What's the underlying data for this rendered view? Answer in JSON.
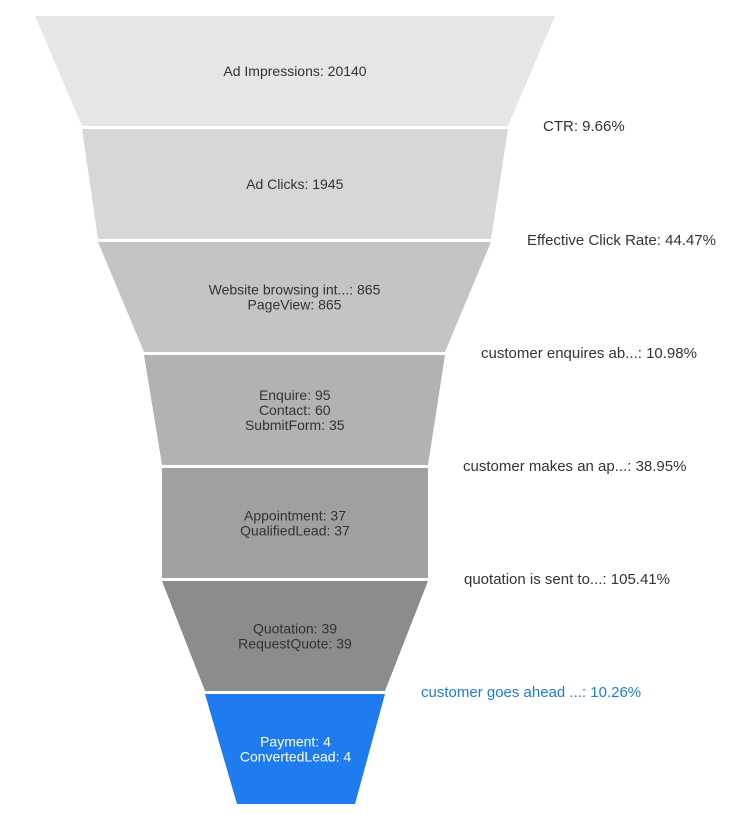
{
  "chart_data": {
    "type": "funnel",
    "stages": [
      {
        "name": "Ad Impressions",
        "value": 20140,
        "lines": [
          "Ad Impressions: 20140"
        ],
        "color": "#e6e6e6"
      },
      {
        "name": "Ad Clicks",
        "value": 1945,
        "lines": [
          "Ad Clicks: 1945"
        ],
        "color": "#d7d7d7"
      },
      {
        "name": "Website browsing int...",
        "value": 865,
        "lines": [
          "Website browsing int...: 865",
          "PageView: 865"
        ],
        "color": "#c4c4c4"
      },
      {
        "name": "Enquire / Contact / SubmitForm",
        "value": 95,
        "lines": [
          "Enquire: 95",
          "Contact: 60",
          "SubmitForm: 35"
        ],
        "color": "#b2b2b2"
      },
      {
        "name": "Appointment / QualifiedLead",
        "value": 37,
        "lines": [
          "Appointment: 37",
          "QualifiedLead: 37"
        ],
        "color": "#a0a0a0"
      },
      {
        "name": "Quotation / RequestQuote",
        "value": 39,
        "lines": [
          "Quotation: 39",
          "RequestQuote: 39"
        ],
        "color": "#8c8c8c"
      },
      {
        "name": "Payment / ConvertedLead",
        "value": 4,
        "lines": [
          "Payment: 4",
          "ConvertedLead: 4"
        ],
        "color": "#1e7bf0",
        "selected": true
      }
    ],
    "conversion_rates": [
      {
        "label": "CTR: 9.66%",
        "value_pct": 9.66
      },
      {
        "label": "Effective Click Rate: 44.47%",
        "value_pct": 44.47
      },
      {
        "label": "customer enquires ab...: 10.98%",
        "value_pct": 10.98
      },
      {
        "label": "customer makes an ap...: 38.95%",
        "value_pct": 38.95
      },
      {
        "label": "quotation is sent to...: 105.41%",
        "value_pct": 105.41
      },
      {
        "label": "customer goes ahead ...: 10.26%",
        "value_pct": 10.26,
        "selected": true
      }
    ],
    "colors": {
      "selected_fill": "#1e7bf0",
      "selected_label": "#1e7bd9",
      "text": "#333333"
    }
  }
}
